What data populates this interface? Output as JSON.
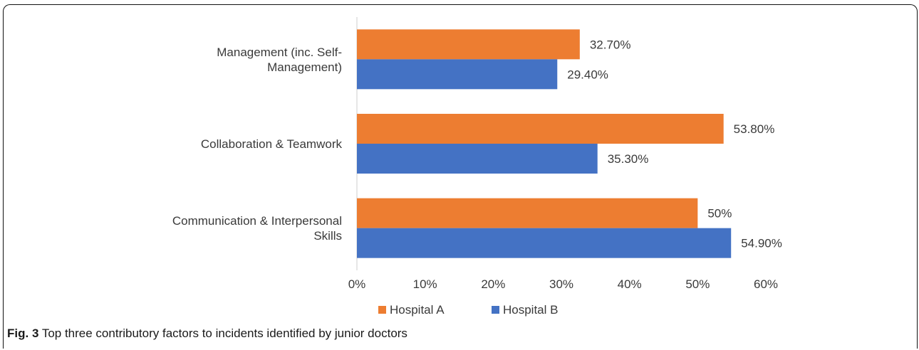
{
  "caption": {
    "label": "Fig. 3",
    "text": "Top three contributory factors to incidents identified by junior doctors"
  },
  "colors": {
    "hospital_a": "#ED7D31",
    "hospital_b": "#4472C4"
  },
  "chart_data": {
    "type": "bar",
    "orientation": "horizontal",
    "categories": [
      "Management (inc. Self-Management)",
      "Collaboration & Teamwork",
      "Communication & Interpersonal Skills"
    ],
    "category_lines": [
      [
        "Management (inc. Self-",
        "Management)"
      ],
      [
        "Collaboration & Teamwork"
      ],
      [
        "Communication & Interpersonal",
        "Skills"
      ]
    ],
    "series": [
      {
        "name": "Hospital A",
        "color": "#ED7D31",
        "values": [
          32.7,
          53.8,
          50
        ],
        "labels": [
          "32.70%",
          "53.80%",
          "50%"
        ]
      },
      {
        "name": "Hospital B",
        "color": "#4472C4",
        "values": [
          29.4,
          35.3,
          54.9
        ],
        "labels": [
          "29.40%",
          "35.30%",
          "54.90%"
        ]
      }
    ],
    "xlim": [
      0,
      60
    ],
    "x_ticks": [
      0,
      10,
      20,
      30,
      40,
      50,
      60
    ],
    "x_tick_labels": [
      "0%",
      "10%",
      "20%",
      "30%",
      "40%",
      "50%",
      "60%"
    ],
    "grid": false,
    "legend_position": "bottom"
  }
}
